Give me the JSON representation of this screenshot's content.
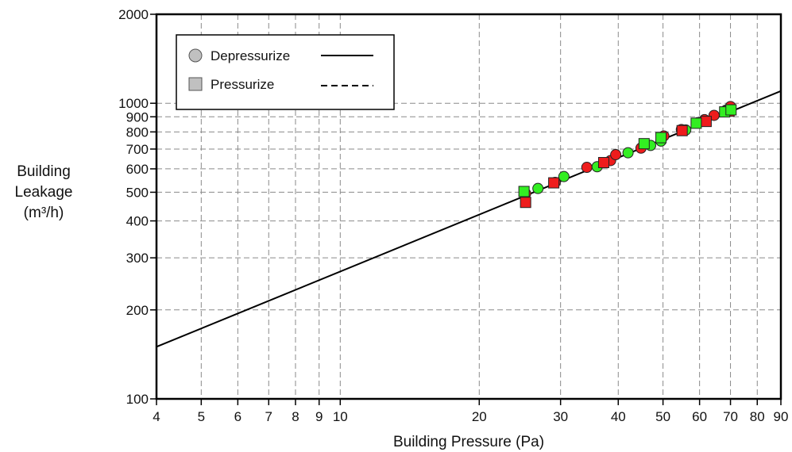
{
  "chart_data": {
    "type": "scatter",
    "xlabel": "Building Pressure (Pa)",
    "ylabel_lines": [
      "Building",
      "Leakage",
      "(m³/h)"
    ],
    "x_scale": "log",
    "y_scale": "log",
    "xlim": [
      4,
      90
    ],
    "ylim": [
      100,
      2000
    ],
    "x_ticks": [
      4,
      5,
      6,
      7,
      8,
      9,
      10,
      20,
      30,
      40,
      50,
      60,
      70,
      80,
      90
    ],
    "y_ticks": [
      100,
      200,
      300,
      400,
      500,
      600,
      700,
      800,
      900,
      1000,
      2000
    ],
    "grid": true,
    "legend": {
      "placement": "top-left",
      "entries": [
        {
          "label": "Depressurize",
          "marker": "circle",
          "line": "solid"
        },
        {
          "label": "Pressurize",
          "marker": "square",
          "line": "dashed"
        }
      ]
    },
    "fit_line": {
      "x": [
        4,
        90
      ],
      "y": [
        150,
        1100
      ]
    },
    "marker_colors": {
      "red": "#ee1c1c",
      "green": "#33ee22",
      "legend_gray": "#c0c0c0"
    },
    "series": [
      {
        "marker": "circle",
        "color": "red",
        "x": [
          25.2,
          29.2,
          34.2,
          38.5,
          39.5,
          44.8,
          50.2,
          54.8,
          61.5,
          64.5,
          70.0
        ],
        "y": [
          495,
          540,
          607,
          640,
          670,
          705,
          775,
          815,
          880,
          910,
          975
        ]
      },
      {
        "marker": "circle",
        "color": "green",
        "x": [
          26.8,
          30.5,
          36.0,
          42.0,
          47.0,
          49.5,
          56.0,
          59.5,
          68.5
        ],
        "y": [
          515,
          565,
          610,
          680,
          720,
          745,
          812,
          860,
          948
        ]
      },
      {
        "marker": "square",
        "color": "red",
        "x": [
          25.2,
          29.0,
          37.2,
          55.0,
          62.0,
          69.5
        ],
        "y": [
          462,
          538,
          630,
          808,
          868,
          940
        ]
      },
      {
        "marker": "square",
        "color": "green",
        "x": [
          25.0,
          45.5,
          49.5,
          59.0,
          68.0,
          70.2
        ],
        "y": [
          503,
          730,
          765,
          856,
          935,
          950
        ]
      }
    ]
  }
}
